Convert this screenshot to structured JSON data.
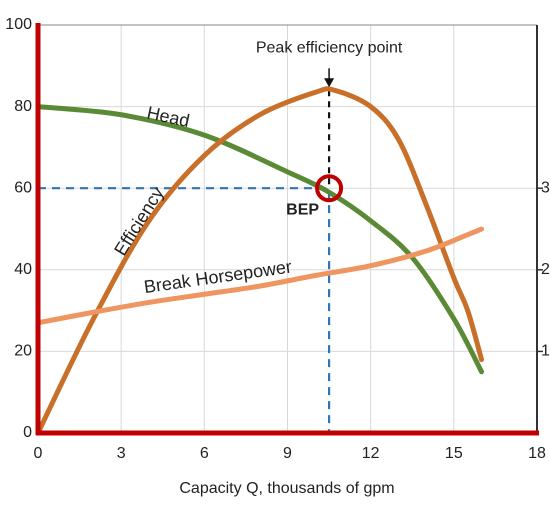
{
  "chart_data": {
    "type": "line",
    "xlabel": "Capacity Q, thousands of gpm",
    "xlim": [
      0,
      18
    ],
    "xticks": [
      0,
      3,
      6,
      9,
      12,
      15,
      18
    ],
    "ylim": [
      0,
      100
    ],
    "yticks": [
      0,
      20,
      40,
      60,
      80,
      100
    ],
    "y2lim": [
      0,
      5
    ],
    "y2ticks": [
      1,
      2,
      3
    ],
    "grid": true,
    "series": [
      {
        "name": "Head",
        "color": "#5a8a35",
        "x": [
          0,
          3,
          6,
          9,
          10.5,
          12,
          13.5,
          15,
          16
        ],
        "values": [
          80,
          78,
          73,
          64,
          59,
          52,
          43,
          28,
          15
        ]
      },
      {
        "name": "Efficiency",
        "color": "#c8702a",
        "x": [
          0,
          2,
          4,
          6,
          8,
          10,
          10.7,
          12,
          13,
          14,
          15,
          15.5,
          16
        ],
        "values": [
          0,
          28,
          52,
          68,
          78,
          83.5,
          84,
          80,
          72,
          56,
          38,
          30,
          18
        ]
      },
      {
        "name": "Break Horsepower",
        "color": "#ef9560",
        "axis": "y2",
        "x": [
          0,
          2,
          4,
          6,
          8,
          10,
          12,
          14,
          15.5,
          16
        ],
        "values": [
          1.35,
          1.48,
          1.6,
          1.7,
          1.8,
          1.93,
          2.05,
          2.23,
          2.43,
          2.5
        ]
      }
    ],
    "annotations": [
      {
        "label": "Peak efficiency point",
        "x": 10.5,
        "y": 84
      },
      {
        "label": "BEP",
        "x": 10.5,
        "y": 60
      }
    ]
  }
}
